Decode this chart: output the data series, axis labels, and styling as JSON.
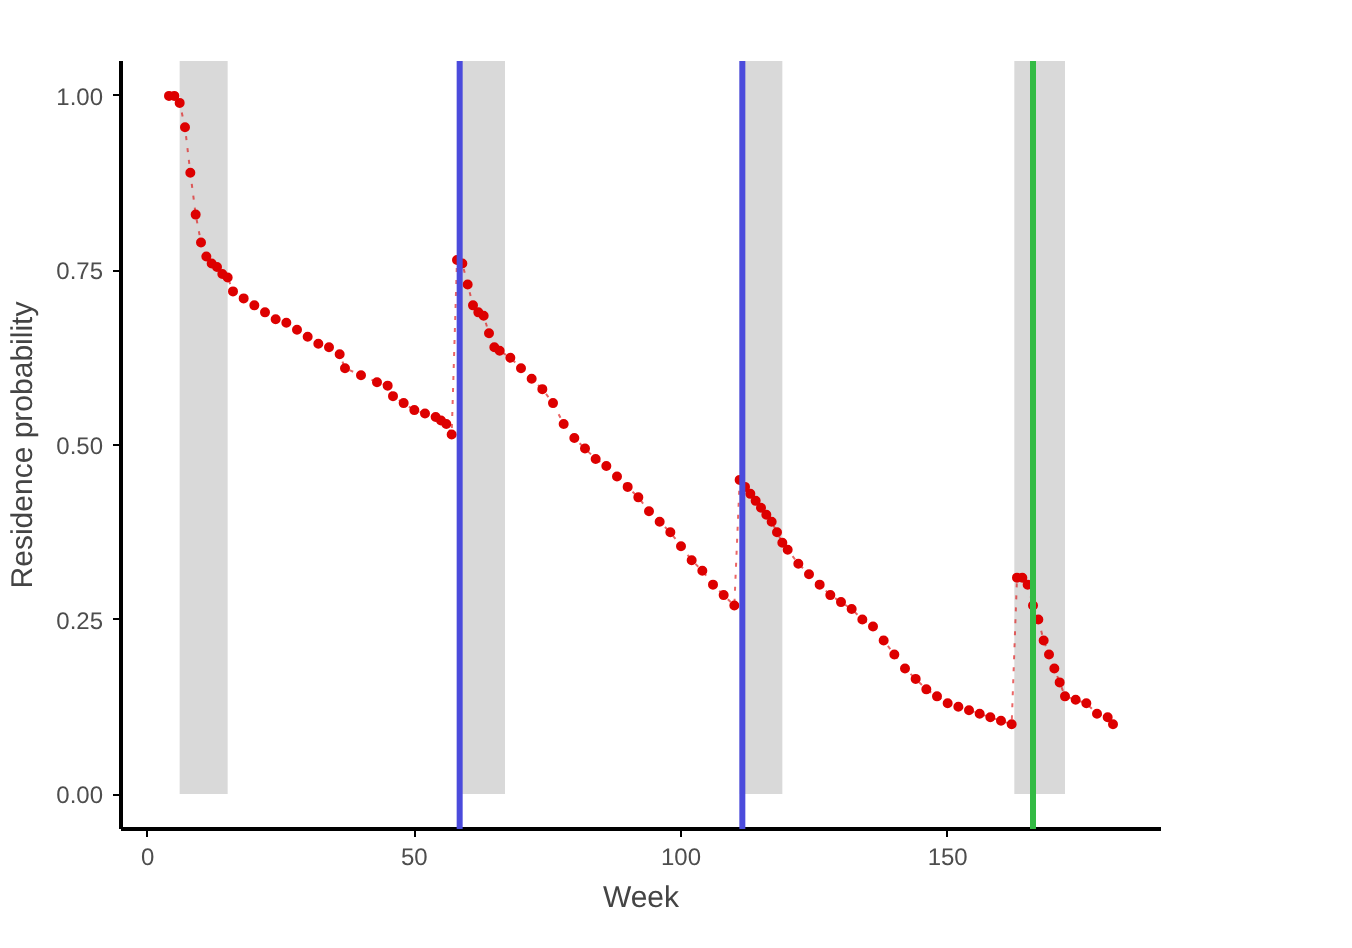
{
  "chart_data": {
    "type": "line",
    "xlabel": "Week",
    "ylabel": "Residence probability",
    "xlim": [
      -5,
      190
    ],
    "ylim": [
      -0.05,
      1.05
    ],
    "xticks": [
      0,
      50,
      100,
      150
    ],
    "yticks": [
      {
        "value": 0,
        "label": "0.00"
      },
      {
        "value": 0.25,
        "label": "0.25"
      },
      {
        "value": 0.5,
        "label": "0.50"
      },
      {
        "value": 0.75,
        "label": "0.75"
      },
      {
        "value": 1,
        "label": "1.00"
      }
    ],
    "grid": false,
    "marker": "circle",
    "line_style": "dotted",
    "series": [
      {
        "color": "#dd0000",
        "x": [
          4,
          5,
          6,
          7,
          8,
          9,
          10,
          11,
          12,
          13,
          14,
          15,
          16,
          18,
          20,
          22,
          24,
          26,
          28,
          30,
          32,
          34,
          36,
          37,
          40,
          43,
          45,
          46,
          48,
          50,
          52,
          54,
          55,
          56,
          57,
          58,
          59,
          60,
          61,
          62,
          63,
          64,
          65,
          66,
          68,
          70,
          72,
          74,
          76,
          78,
          80,
          82,
          84,
          86,
          88,
          90,
          92,
          94,
          96,
          98,
          100,
          102,
          104,
          106,
          108,
          110,
          111,
          112,
          113,
          114,
          115,
          116,
          117,
          118,
          119,
          120,
          122,
          124,
          126,
          128,
          130,
          132,
          134,
          136,
          138,
          140,
          142,
          144,
          146,
          148,
          150,
          152,
          154,
          156,
          158,
          160,
          162,
          163,
          164,
          165,
          166,
          167,
          168,
          169,
          170,
          171,
          172,
          174,
          176,
          178,
          180,
          181
        ],
        "values": [
          1.0,
          1.0,
          0.99,
          0.955,
          0.89,
          0.83,
          0.79,
          0.77,
          0.76,
          0.755,
          0.745,
          0.74,
          0.72,
          0.71,
          0.7,
          0.69,
          0.68,
          0.675,
          0.665,
          0.655,
          0.645,
          0.64,
          0.63,
          0.61,
          0.6,
          0.59,
          0.585,
          0.57,
          0.56,
          0.55,
          0.545,
          0.54,
          0.535,
          0.53,
          0.515,
          0.765,
          0.76,
          0.73,
          0.7,
          0.69,
          0.685,
          0.66,
          0.64,
          0.635,
          0.625,
          0.61,
          0.595,
          0.58,
          0.56,
          0.53,
          0.51,
          0.495,
          0.48,
          0.47,
          0.455,
          0.44,
          0.425,
          0.405,
          0.39,
          0.375,
          0.355,
          0.335,
          0.32,
          0.3,
          0.285,
          0.27,
          0.45,
          0.44,
          0.43,
          0.42,
          0.41,
          0.4,
          0.39,
          0.375,
          0.36,
          0.35,
          0.33,
          0.315,
          0.3,
          0.285,
          0.275,
          0.265,
          0.25,
          0.24,
          0.22,
          0.2,
          0.18,
          0.165,
          0.15,
          0.14,
          0.13,
          0.125,
          0.12,
          0.115,
          0.11,
          0.105,
          0.1,
          0.31,
          0.31,
          0.3,
          0.27,
          0.25,
          0.22,
          0.2,
          0.18,
          0.16,
          0.14,
          0.135,
          0.13,
          0.115,
          0.11,
          0.1
        ]
      }
    ],
    "bands": [
      {
        "axis": "x",
        "from": 6,
        "to": 15,
        "color": "#d9d9d9"
      },
      {
        "axis": "x",
        "from": 58,
        "to": 67,
        "color": "#d9d9d9"
      },
      {
        "axis": "x",
        "from": 111,
        "to": 119,
        "color": "#d9d9d9"
      },
      {
        "axis": "x",
        "from": 162.5,
        "to": 172,
        "color": "#d9d9d9"
      }
    ],
    "ref_lines": [
      {
        "axis": "x",
        "value": 58.5,
        "color": "#4b4bdc"
      },
      {
        "axis": "x",
        "value": 111.5,
        "color": "#4b4bdc"
      },
      {
        "axis": "x",
        "value": 166,
        "color": "#33bb44"
      }
    ]
  }
}
